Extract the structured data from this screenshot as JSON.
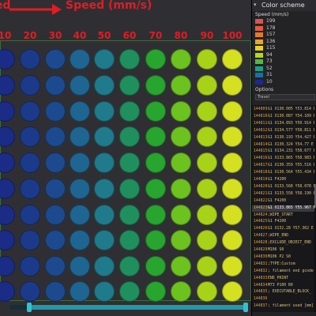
{
  "viewport": {
    "title_left": "ed",
    "title": "Speed (mm/s)",
    "columns": [
      "10",
      "20",
      "30",
      "40",
      "50",
      "60",
      "70",
      "80",
      "90",
      "100"
    ],
    "rows": 10,
    "column_colors": [
      "#1a2c86",
      "#1c3a8a",
      "#1d4a8e",
      "#1f6592",
      "#1f7b8c",
      "#1f8f5e",
      "#27a52f",
      "#6cc21e",
      "#a8d218",
      "#d5e020"
    ]
  },
  "panel": {
    "color_scheme_label": "Color scheme",
    "speed_label": "Speed (mm/s)",
    "legend": [
      {
        "value": "199",
        "color": "#d9534f"
      },
      {
        "value": "178",
        "color": "#e05d3a"
      },
      {
        "value": "157",
        "color": "#e07b2e"
      },
      {
        "value": "136",
        "color": "#e8a72a"
      },
      {
        "value": "115",
        "color": "#e3d41f"
      },
      {
        "value": "94",
        "color": "#b5d61a"
      },
      {
        "value": "73",
        "color": "#52b93a"
      },
      {
        "value": "52",
        "color": "#1e9f7f"
      },
      {
        "value": "31",
        "color": "#1e6fa0"
      },
      {
        "value": "10",
        "color": "#1b2a8c"
      }
    ],
    "options_label": "Options",
    "travel": "Travel"
  },
  "gcode": [
    {
      "num": "144809",
      "text": "G1 X130.005 Y53.814 E"
    },
    {
      "num": "144810",
      "text": "G1 X130.087 Y54.109 E"
    },
    {
      "num": "144811",
      "text": "G1 X134.893 Y50.914 E"
    },
    {
      "num": "144812",
      "text": "G1 X134.577 Y58.811 E"
    },
    {
      "num": "144813",
      "text": "G1 X130.193 Y54.427 E"
    },
    {
      "num": "144814",
      "text": "G1 X130.324 Y54.77 E"
    },
    {
      "num": "144815",
      "text": "G1 X134.231 Y58.677 E"
    },
    {
      "num": "144816",
      "text": "G1 X133.865 Y58.983 E"
    },
    {
      "num": "144817",
      "text": "G1 X130.359 Y55.516 E"
    },
    {
      "num": "144818",
      "text": "G1 X130.564 Y55.434 E"
    },
    {
      "num": "144819",
      "text": "G1 F4200"
    },
    {
      "num": "144820",
      "text": "G1 X133.568 Y58.078 E"
    },
    {
      "num": "144821",
      "text": "G1 X133.558 Y58.190 E"
    },
    {
      "num": "144822",
      "text": "G1 F4200"
    },
    {
      "num": "144823",
      "text": "G1 X133.865 Y55.967 E"
    },
    {
      "num": "144824",
      "text": ";WIPE_START"
    },
    {
      "num": "144825",
      "text": "G1 F4200"
    },
    {
      "num": "144826",
      "text": "G1 X132.28 Y57.362 E"
    },
    {
      "num": "144827",
      "text": ";WIPE_END"
    },
    {
      "num": "144828",
      "text": ";EXCLUDE_OBJECT_END"
    },
    {
      "num": "144829",
      "text": "M106 S0"
    },
    {
      "num": "144830",
      "text": "M106 P2 S0"
    },
    {
      "num": "144831",
      "text": ";TYPE:Custom"
    },
    {
      "num": "144832",
      "text": "; filament end gcode"
    },
    {
      "num": "144833",
      "text": "END_PRINT"
    },
    {
      "num": "144834",
      "text": "M73 P100 R0"
    },
    {
      "num": "144835",
      "text": "; EXECUTABLE_BLOCK_"
    },
    {
      "num": "144836",
      "text": ""
    },
    {
      "num": "144837",
      "text": "; filament used [mm] ="
    }
  ]
}
